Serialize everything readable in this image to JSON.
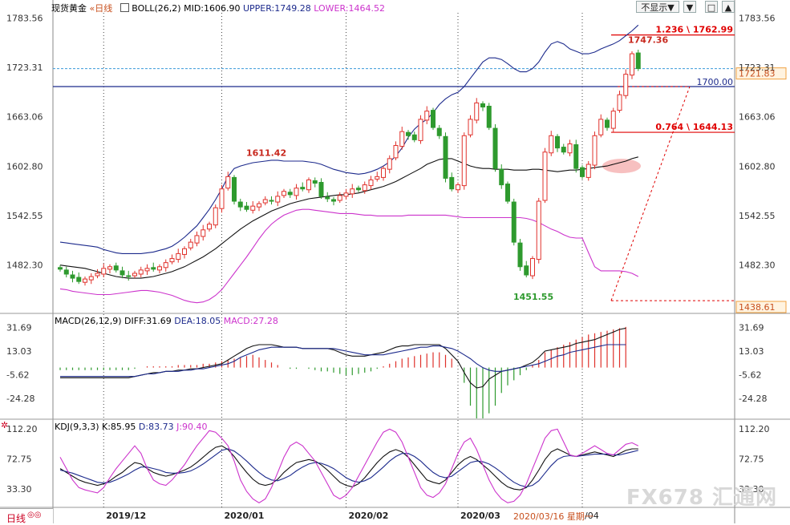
{
  "header": {
    "instrument": "现货黄金",
    "period": "日线",
    "boll_label": "BOLL(26,2)",
    "mid": "MID:1606.90",
    "upper": "UPPER:1749.28",
    "lower": "LOWER:1464.52",
    "display_button": "不显示▼"
  },
  "window_controls": [
    "▼",
    "□",
    "▲"
  ],
  "macd_header": {
    "label": "MACD(26,12,9)",
    "diff": "DIFF:31.69",
    "dea": "DEA:18.05",
    "macd": "MACD:27.28"
  },
  "kdj_header": {
    "label": "KDJ(9,3,3)",
    "k": "K:85.95",
    "d": "D:83.73",
    "j": "J:90.40"
  },
  "bottom_tab": "日线",
  "date_marker": "2020/03/16 星期一",
  "watermark": "FX678 汇通网",
  "colors": {
    "up": "#e0312b",
    "down": "#2e9a2e",
    "upper_band": "#1c2a8c",
    "lower_band": "#cc33cc",
    "mid_band": "#111111",
    "fib": "#e00000"
  },
  "chart_data": [
    {
      "type": "candlestick",
      "title": "现货黄金 日线",
      "x_labels": [
        "2019/12",
        "2020/01",
        "2020/02",
        "2020/03",
        "/04"
      ],
      "y_ticks": [
        1783.56,
        1723.31,
        1663.06,
        1602.8,
        1542.55,
        1482.3
      ],
      "ylim": [
        1424,
        1790
      ],
      "last_price": 1721.83,
      "lowest_marker": 1438.61,
      "horizontal_line": 1700.0,
      "fib_levels": [
        {
          "ratio": "1.236",
          "value": 1762.99
        },
        {
          "ratio": "0.764",
          "value": 1644.13
        }
      ],
      "annotations": [
        {
          "text": "1611.42",
          "value": 1611.42
        },
        {
          "text": "1747.36",
          "value": 1747.36
        },
        {
          "text": "1451.55",
          "value": 1451.55
        }
      ],
      "closes": [
        1477,
        1471,
        1466,
        1462,
        1465,
        1468,
        1472,
        1478,
        1480,
        1476,
        1470,
        1468,
        1472,
        1476,
        1478,
        1477,
        1480,
        1485,
        1490,
        1496,
        1502,
        1510,
        1518,
        1525,
        1532,
        1552,
        1575,
        1590,
        1560,
        1553,
        1550,
        1554,
        1557,
        1562,
        1560,
        1566,
        1572,
        1568,
        1576,
        1575,
        1586,
        1582,
        1566,
        1563,
        1560,
        1567,
        1570,
        1575,
        1574,
        1580,
        1586,
        1590,
        1600,
        1612,
        1628,
        1645,
        1640,
        1635,
        1660,
        1670,
        1650,
        1640,
        1588,
        1575,
        1580,
        1640,
        1660,
        1680,
        1675,
        1650,
        1600,
        1580,
        1560,
        1510,
        1480,
        1470,
        1490,
        1560,
        1620,
        1640,
        1625,
        1620,
        1630,
        1600,
        1590,
        1605,
        1640,
        1660,
        1650,
        1670,
        1690,
        1715,
        1740,
        1722
      ],
      "boll_upper": [
        1510,
        1509,
        1508,
        1507,
        1506,
        1505,
        1504,
        1501,
        1499,
        1497,
        1496,
        1496,
        1496,
        1496,
        1497,
        1498,
        1500,
        1502,
        1505,
        1510,
        1516,
        1523,
        1530,
        1540,
        1550,
        1562,
        1575,
        1590,
        1600,
        1603,
        1605,
        1607,
        1608,
        1609,
        1610,
        1610,
        1609,
        1609,
        1609,
        1609,
        1608,
        1607,
        1605,
        1602,
        1599,
        1597,
        1595,
        1594,
        1593,
        1594,
        1596,
        1599,
        1603,
        1608,
        1615,
        1625,
        1638,
        1648,
        1655,
        1660,
        1668,
        1678,
        1685,
        1690,
        1693,
        1700,
        1710,
        1720,
        1730,
        1735,
        1735,
        1733,
        1728,
        1722,
        1718,
        1718,
        1722,
        1730,
        1742,
        1752,
        1755,
        1752,
        1746,
        1743,
        1740,
        1740,
        1742,
        1746,
        1749,
        1752,
        1756,
        1762,
        1768,
        1775
      ],
      "boll_mid": [
        1482,
        1481,
        1480,
        1479,
        1478,
        1476,
        1474,
        1472,
        1470,
        1468,
        1467,
        1466,
        1466,
        1466,
        1467,
        1468,
        1470,
        1472,
        1474,
        1477,
        1480,
        1484,
        1488,
        1492,
        1497,
        1502,
        1508,
        1514,
        1520,
        1526,
        1531,
        1536,
        1540,
        1544,
        1548,
        1551,
        1554,
        1557,
        1559,
        1561,
        1563,
        1564,
        1565,
        1566,
        1567,
        1568,
        1568,
        1569,
        1570,
        1572,
        1574,
        1576,
        1578,
        1581,
        1584,
        1588,
        1592,
        1596,
        1600,
        1605,
        1608,
        1611,
        1612,
        1612,
        1609,
        1606,
        1603,
        1601,
        1600,
        1600,
        1599,
        1599,
        1599,
        1598,
        1598,
        1598,
        1599,
        1599,
        1598,
        1597,
        1596,
        1597,
        1598,
        1598,
        1599,
        1600,
        1601,
        1602,
        1603,
        1605,
        1607,
        1609,
        1612,
        1614
      ],
      "boll_lower": [
        1453,
        1452,
        1450,
        1449,
        1448,
        1447,
        1446,
        1446,
        1446,
        1447,
        1448,
        1449,
        1450,
        1451,
        1451,
        1450,
        1449,
        1447,
        1445,
        1442,
        1439,
        1437,
        1436,
        1437,
        1440,
        1445,
        1452,
        1462,
        1472,
        1482,
        1492,
        1503,
        1514,
        1524,
        1532,
        1538,
        1543,
        1546,
        1549,
        1550,
        1550,
        1549,
        1548,
        1547,
        1546,
        1545,
        1545,
        1545,
        1544,
        1543,
        1543,
        1542,
        1542,
        1542,
        1542,
        1542,
        1543,
        1543,
        1543,
        1543,
        1543,
        1543,
        1543,
        1542,
        1541,
        1540,
        1540,
        1540,
        1540,
        1540,
        1540,
        1540,
        1540,
        1540,
        1540,
        1539,
        1537,
        1534,
        1530,
        1526,
        1523,
        1519,
        1516,
        1515,
        1515,
        1497,
        1480,
        1475,
        1475,
        1475,
        1475,
        1474,
        1472,
        1468
      ]
    },
    {
      "type": "macd",
      "title": "MACD(26,12,9)",
      "y_ticks": [
        31.69,
        13.03,
        -5.62,
        -24.28
      ],
      "ylim": [
        -40,
        42
      ],
      "diff_last": 31.69,
      "dea_last": 18.05,
      "macd_last": 27.28,
      "diff": [
        -8,
        -8,
        -8,
        -8,
        -8,
        -8,
        -8,
        -8,
        -8,
        -8,
        -8,
        -8,
        -7,
        -6,
        -5,
        -4,
        -4,
        -3,
        -3,
        -2,
        -2,
        -1,
        -1,
        0,
        1,
        2,
        3,
        6,
        9,
        12,
        15,
        17,
        18,
        18,
        18,
        17,
        16,
        16,
        16,
        15,
        15,
        15,
        15,
        15,
        14,
        12,
        10,
        9,
        9,
        9,
        10,
        11,
        12,
        14,
        16,
        17,
        17,
        18,
        18,
        18,
        18,
        18,
        15,
        10,
        5,
        -4,
        -12,
        -16,
        -15,
        -9,
        -6,
        -3,
        -2,
        -1,
        0,
        2,
        4,
        8,
        13,
        14,
        15,
        16,
        17,
        19,
        20,
        21,
        22,
        24,
        26,
        28,
        30,
        31
      ],
      "dea": [
        -7,
        -7,
        -7,
        -7,
        -7,
        -7,
        -7,
        -7,
        -7,
        -7,
        -7,
        -7,
        -7,
        -6,
        -5,
        -5,
        -4,
        -3,
        -3,
        -3,
        -2,
        -2,
        -1,
        -1,
        0,
        1,
        2,
        3,
        5,
        8,
        10,
        12,
        14,
        15,
        16,
        16,
        16,
        16,
        16,
        15,
        15,
        15,
        15,
        15,
        15,
        14,
        13,
        12,
        11,
        10,
        10,
        10,
        10,
        11,
        12,
        13,
        14,
        15,
        16,
        16,
        17,
        17,
        16,
        15,
        13,
        10,
        7,
        3,
        0,
        -2,
        -3,
        -3,
        -2,
        -1,
        0,
        1,
        2,
        3,
        5,
        7,
        9,
        10,
        12,
        13,
        14,
        15,
        16,
        17,
        18,
        18,
        18,
        18
      ],
      "histogram": [
        -2,
        -2,
        -2,
        -2,
        -2,
        -2,
        -2,
        -2,
        -2,
        -2,
        -2,
        -2,
        -1,
        0,
        1,
        1,
        1,
        1,
        1,
        2,
        2,
        2,
        2,
        3,
        3,
        4,
        5,
        6,
        7,
        8,
        9,
        10,
        8,
        6,
        4,
        2,
        0,
        -1,
        -1,
        0,
        -1,
        -2,
        -3,
        -3,
        -4,
        -5,
        -6,
        -6,
        -5,
        -4,
        -3,
        -1,
        1,
        3,
        5,
        7,
        8,
        9,
        10,
        11,
        12,
        12,
        10,
        7,
        0,
        -12,
        -30,
        -40,
        -40,
        -36,
        -30,
        -20,
        -14,
        -10,
        -6,
        -2,
        2,
        6,
        12,
        14,
        16,
        18,
        20,
        22,
        24,
        26,
        27,
        28,
        29,
        30,
        31,
        32
      ]
    },
    {
      "type": "kdj",
      "title": "KDJ(9,3,3)",
      "y_ticks": [
        112.2,
        72.75,
        33.3
      ],
      "ylim": [
        10,
        124
      ],
      "k_last": 85.95,
      "d_last": 83.73,
      "j_last": 90.4,
      "k": [
        60,
        55,
        50,
        45,
        42,
        40,
        38,
        40,
        44,
        50,
        55,
        62,
        68,
        66,
        60,
        55,
        52,
        50,
        52,
        55,
        58,
        62,
        68,
        75,
        82,
        88,
        90,
        85,
        76,
        65,
        55,
        46,
        40,
        38,
        40,
        46,
        55,
        62,
        68,
        70,
        72,
        70,
        65,
        58,
        50,
        42,
        38,
        36,
        40,
        48,
        58,
        68,
        76,
        82,
        85,
        82,
        75,
        65,
        55,
        45,
        42,
        40,
        45,
        55,
        65,
        72,
        76,
        72,
        65,
        58,
        50,
        42,
        36,
        33,
        32,
        35,
        45,
        58,
        72,
        82,
        86,
        82,
        78,
        76,
        78,
        80,
        82,
        80,
        78,
        76,
        80,
        84,
        86,
        86
      ],
      "d": [
        58,
        56,
        54,
        51,
        48,
        45,
        42,
        41,
        42,
        45,
        49,
        53,
        58,
        62,
        62,
        60,
        58,
        55,
        54,
        54,
        55,
        57,
        61,
        66,
        72,
        78,
        84,
        86,
        83,
        77,
        70,
        62,
        55,
        49,
        45,
        44,
        47,
        51,
        57,
        62,
        66,
        68,
        67,
        64,
        60,
        54,
        48,
        44,
        42,
        44,
        48,
        55,
        62,
        70,
        76,
        80,
        80,
        76,
        70,
        62,
        55,
        50,
        48,
        50,
        56,
        62,
        68,
        70,
        69,
        66,
        61,
        55,
        48,
        42,
        38,
        36,
        38,
        44,
        54,
        64,
        72,
        76,
        77,
        76,
        77,
        78,
        79,
        79,
        79,
        78,
        78,
        80,
        82,
        84
      ],
      "j": [
        75,
        60,
        45,
        35,
        32,
        30,
        28,
        35,
        48,
        60,
        70,
        80,
        90,
        80,
        60,
        45,
        40,
        38,
        45,
        55,
        65,
        78,
        90,
        100,
        110,
        108,
        100,
        90,
        70,
        45,
        30,
        20,
        15,
        20,
        35,
        55,
        75,
        90,
        95,
        90,
        80,
        70,
        55,
        40,
        25,
        20,
        25,
        35,
        50,
        65,
        80,
        95,
        108,
        112,
        108,
        95,
        75,
        55,
        35,
        25,
        22,
        28,
        40,
        60,
        80,
        95,
        100,
        85,
        65,
        45,
        30,
        20,
        15,
        17,
        25,
        40,
        60,
        80,
        100,
        110,
        112,
        95,
        78,
        76,
        80,
        85,
        90,
        85,
        80,
        78,
        85,
        92,
        94,
        90
      ]
    }
  ]
}
